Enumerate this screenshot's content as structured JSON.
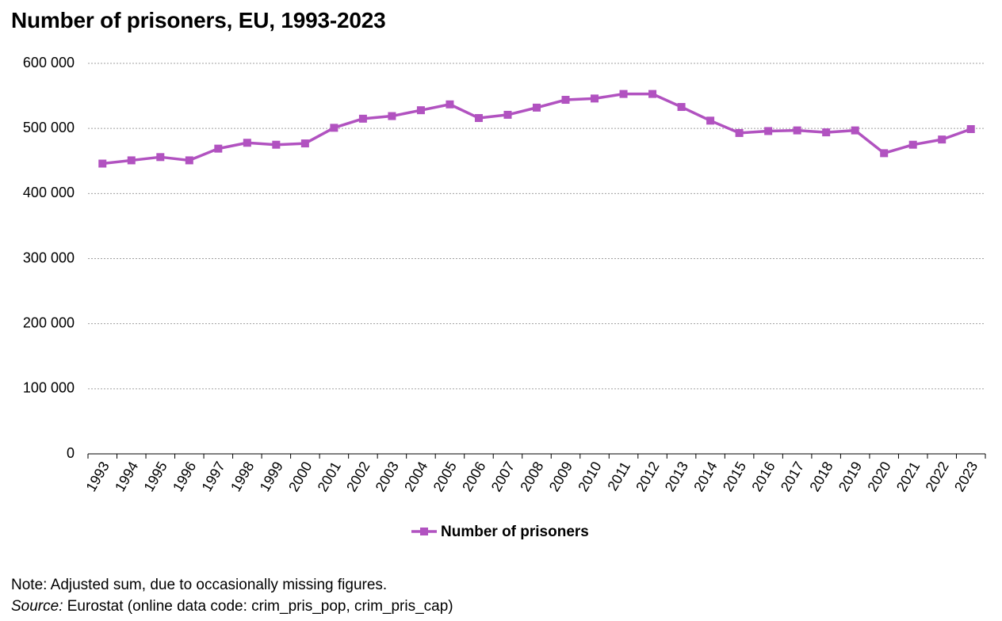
{
  "chart_data": {
    "type": "line",
    "title": "Number of prisoners, EU, 1993-2023",
    "xlabel": "",
    "ylabel": "",
    "ylim": [
      0,
      600000
    ],
    "yticks": [
      0,
      100000,
      200000,
      300000,
      400000,
      500000,
      600000
    ],
    "ytick_labels": [
      "0",
      "100 000",
      "200 000",
      "300 000",
      "400 000",
      "500 000",
      "600 000"
    ],
    "grid": "horizontal dotted",
    "legend_position": "bottom-center",
    "categories": [
      "1993",
      "1994",
      "1995",
      "1996",
      "1997",
      "1998",
      "1999",
      "2000",
      "2001",
      "2002",
      "2003",
      "2004",
      "2005",
      "2006",
      "2007",
      "2008",
      "2009",
      "2010",
      "2011",
      "2012",
      "2013",
      "2014",
      "2015",
      "2016",
      "2017",
      "2018",
      "2019",
      "2020",
      "2021",
      "2022",
      "2023"
    ],
    "series": [
      {
        "name": "Number of prisoners",
        "color": "#b152c0",
        "marker": "square",
        "values": [
          446000,
          451000,
          456000,
          451000,
          469000,
          478000,
          475000,
          477000,
          501000,
          515000,
          519000,
          528000,
          537000,
          516000,
          521000,
          532000,
          544000,
          546000,
          553000,
          553000,
          533000,
          512000,
          493000,
          496000,
          497000,
          494000,
          497000,
          462000,
          475000,
          483000,
          499000
        ]
      }
    ]
  },
  "footer": {
    "note": "Note: Adjusted sum, due to occasionally missing figures.",
    "source_label": "Source:",
    "source_text": " Eurostat (online data code: crim_pris_pop, crim_pris_cap)"
  }
}
